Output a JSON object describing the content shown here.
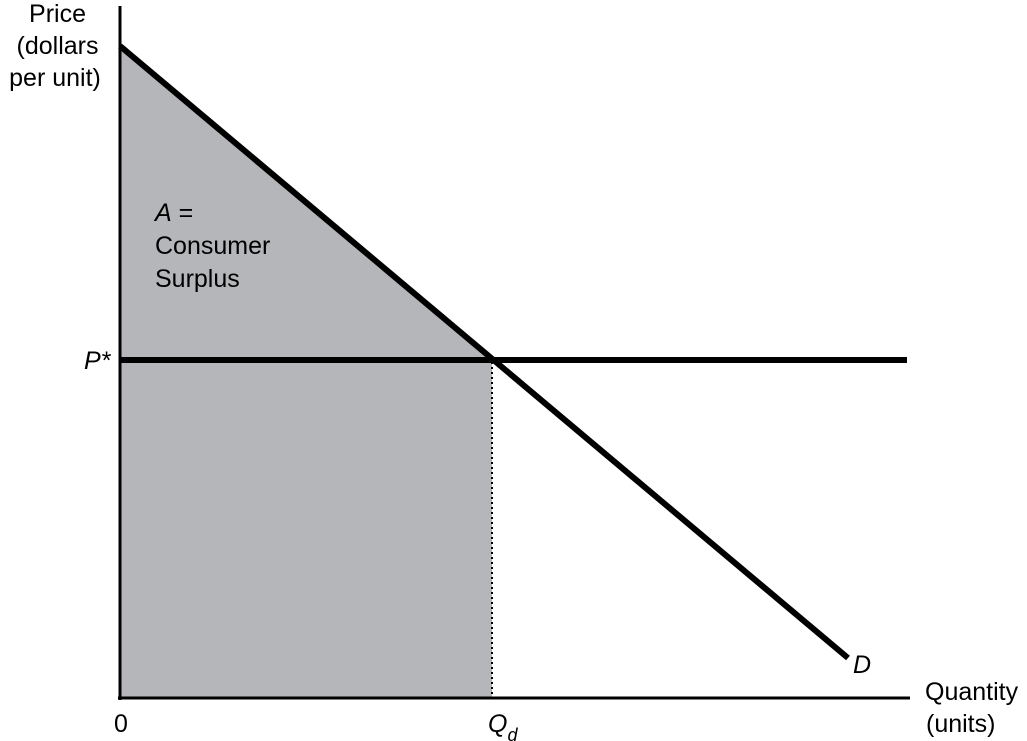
{
  "figure": {
    "y_axis_label_lines": [
      "Price",
      "(dollars",
      "per unit)"
    ],
    "x_axis_label_lines": [
      "Quantity",
      "(units)"
    ],
    "origin_label": "0",
    "price_label": "P*",
    "quantity_label_main": "Q",
    "quantity_label_sub": "d",
    "demand_label": "D",
    "area_label_lines": [
      "A =",
      "Consumer",
      "Surplus"
    ]
  },
  "colors": {
    "shade": "#b5b6b9",
    "line": "#000000",
    "background": "#ffffff"
  }
}
